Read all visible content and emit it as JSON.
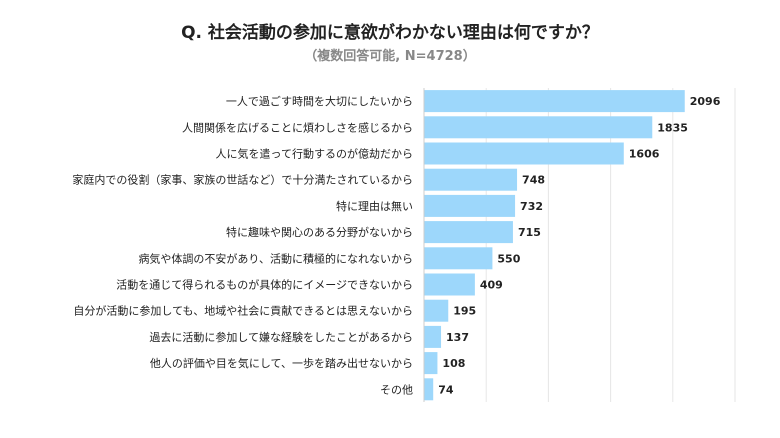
{
  "chart_data": {
    "type": "bar",
    "orientation": "horizontal",
    "title": "Q. 社会活動の参加に意欲がわかない理由は何ですか？",
    "subtitle": "（複数回答可能, N=4728）",
    "categories": [
      "一人で過ごす時間を大切にしたいから",
      "人間関係を広げることに煩わしさを感じるから",
      "人に気を遣って行動するのが億劫だから",
      "家庭内での役割（家事、家族の世話など）で十分満たされているから",
      "特に理由は無い",
      "特に趣味や関心のある分野がないから",
      "病気や体調の不安があり、活動に積極的になれないから",
      "活動を通じて得られるものが具体的にイメージできないから",
      "自分が活動に参加しても、地域や社会に貢献できるとは思えないから",
      "過去に活動に参加して嫌な経験をしたことがあるから",
      "他人の評価や目を気にして、一歩を踏み出せないから",
      "その他"
    ],
    "values": [
      2096,
      1835,
      1606,
      748,
      732,
      715,
      550,
      409,
      195,
      137,
      108,
      74
    ],
    "xlim": [
      0,
      2500
    ],
    "grid_step": 500,
    "grid": true,
    "bar_color": "#9dd7fb",
    "grid_color": "#e6e6e6"
  }
}
